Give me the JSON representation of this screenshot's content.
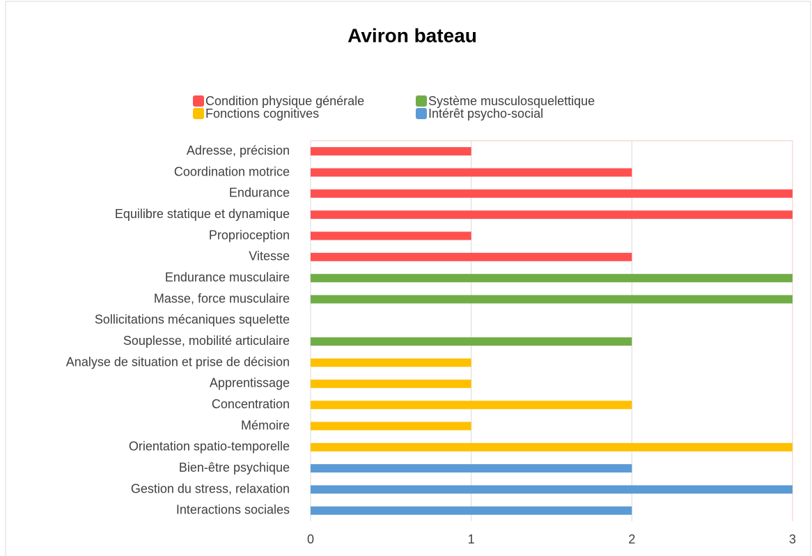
{
  "chart_data": {
    "type": "bar",
    "orientation": "horizontal",
    "title": "Aviron bateau",
    "categories": [
      "Adresse, précision",
      "Coordination motrice",
      "Endurance",
      "Equilibre statique et dynamique",
      "Proprioception",
      "Vitesse",
      "Endurance musculaire",
      "Masse,  force musculaire",
      "Sollicitations mécaniques squelette",
      "Souplesse, mobilité articulaire",
      "Analyse de situation et prise de décision",
      "Apprentissage",
      "Concentration",
      "Mémoire",
      "Orientation spatio-temporelle",
      "Bien-être psychique",
      "Gestion du stress, relaxation",
      "Interactions sociales"
    ],
    "series": [
      {
        "name": "Condition physique générale",
        "color": "#ff5050",
        "values": [
          1,
          2,
          3,
          3,
          1,
          2,
          null,
          null,
          null,
          null,
          null,
          null,
          null,
          null,
          null,
          null,
          null,
          null
        ]
      },
      {
        "name": "Système musculosquelettique",
        "color": "#70ad47",
        "values": [
          null,
          null,
          null,
          null,
          null,
          null,
          3,
          3,
          0,
          2,
          null,
          null,
          null,
          null,
          null,
          null,
          null,
          null
        ]
      },
      {
        "name": "Fonctions cognitives",
        "color": "#ffc000",
        "values": [
          null,
          null,
          null,
          null,
          null,
          null,
          null,
          null,
          null,
          null,
          1,
          1,
          2,
          1,
          3,
          null,
          null,
          null
        ]
      },
      {
        "name": "Intérêt psycho-social",
        "color": "#5b9bd5",
        "values": [
          null,
          null,
          null,
          null,
          null,
          null,
          null,
          null,
          null,
          null,
          null,
          null,
          null,
          null,
          null,
          2,
          3,
          2
        ]
      }
    ],
    "xlim": [
      0,
      3
    ],
    "xticks": [
      0,
      1,
      2,
      3
    ],
    "grid": true
  }
}
